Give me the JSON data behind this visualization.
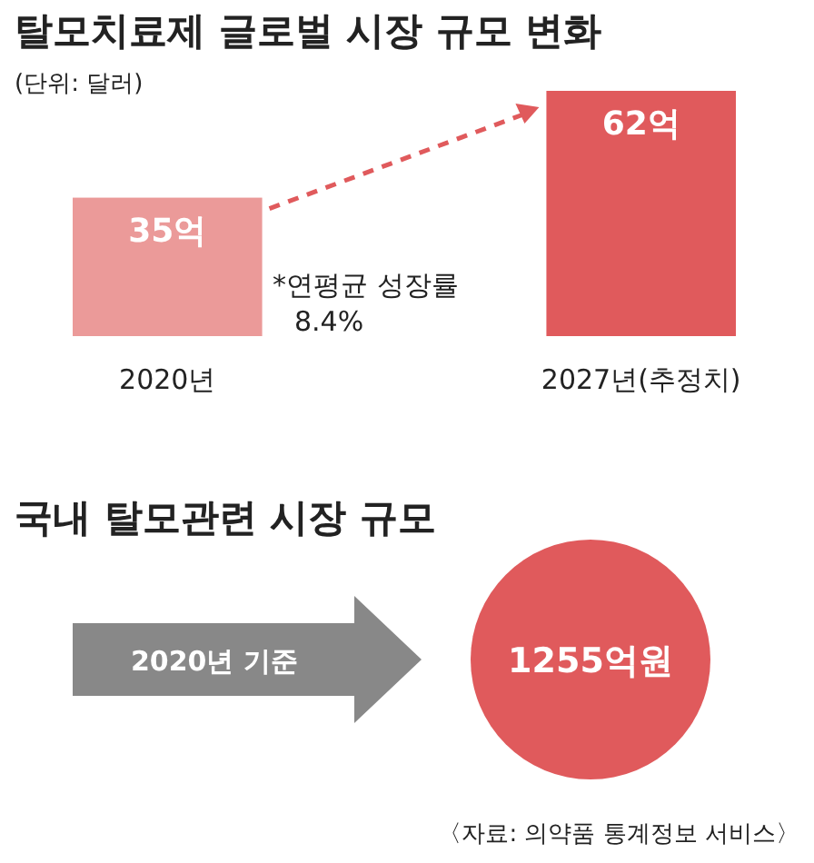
{
  "chart_data": [
    {
      "type": "bar",
      "title": "탈모치료제 글로벌 시장 규모 변화",
      "subtitle": "(단위: 달러)",
      "categories": [
        "2020년",
        "2027년(추정치)"
      ],
      "values": [
        35,
        62
      ],
      "value_labels": [
        "35억",
        "62억"
      ],
      "colors": [
        "#eb9a99",
        "#e05a5c"
      ],
      "annotations": [
        "*연평균 성장률 8.4%"
      ]
    },
    {
      "type": "other",
      "title": "국내 탈모관련 시장 규모",
      "categories": [
        "2020년 기준"
      ],
      "values": [
        1255
      ],
      "value_labels": [
        "1255억원"
      ],
      "colors": [
        "#e05a5c"
      ],
      "annotations": [
        "〈자료: 의약품 통계정보 서비스〉"
      ]
    }
  ]
}
